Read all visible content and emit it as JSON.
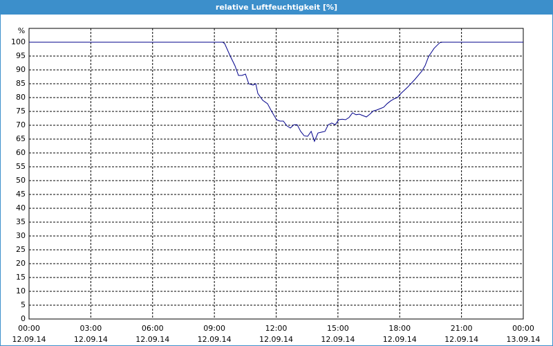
{
  "chart_data": {
    "type": "line",
    "title": "relative Luftfeuchtigkeit [%]",
    "y_label": "%",
    "x": [
      0,
      9.4,
      9.5,
      9.77,
      10.0,
      10.17,
      10.34,
      10.51,
      10.67,
      10.88,
      11.01,
      11.11,
      11.35,
      11.58,
      11.78,
      12.02,
      12.18,
      12.35,
      12.52,
      12.69,
      12.86,
      13.02,
      13.19,
      13.36,
      13.53,
      13.7,
      13.86,
      14.03,
      14.2,
      14.37,
      14.53,
      14.7,
      14.87,
      15.04,
      15.21,
      15.37,
      15.54,
      15.71,
      15.88,
      16.04,
      16.21,
      16.38,
      16.55,
      16.72,
      16.88,
      17.05,
      17.22,
      17.39,
      17.56,
      17.72,
      17.89,
      18.06,
      18.39,
      18.73,
      19.07,
      19.23,
      19.4,
      19.67,
      19.94,
      20.07,
      24
    ],
    "series": [
      {
        "name": "relative Luftfeuchtigkeit",
        "color": "#00008b",
        "values": [
          100,
          100,
          99.5,
          95,
          91.5,
          88,
          88,
          88.5,
          85,
          84.5,
          85,
          81.5,
          79,
          77.8,
          75,
          72,
          71.5,
          71.5,
          69.8,
          69,
          70.2,
          70.2,
          67.8,
          66.2,
          66,
          67.8,
          64.2,
          67.2,
          67.5,
          67.8,
          70.2,
          70.8,
          70.2,
          72,
          72.2,
          72,
          72.8,
          74.5,
          73.8,
          74,
          73.5,
          73,
          74,
          75.2,
          75.5,
          76,
          76.5,
          77.8,
          78.8,
          79.5,
          80,
          81.5,
          83.8,
          86.5,
          89.5,
          91.5,
          94.8,
          97.8,
          99.8,
          100,
          100
        ]
      }
    ],
    "xlim": [
      0,
      24
    ],
    "xticks": [
      {
        "value": 0,
        "label": "00:00",
        "date": "12.09.14"
      },
      {
        "value": 3,
        "label": "03:00",
        "date": "12.09.14"
      },
      {
        "value": 6,
        "label": "06:00",
        "date": "12.09.14"
      },
      {
        "value": 9,
        "label": "09:00",
        "date": "12.09.14"
      },
      {
        "value": 12,
        "label": "12:00",
        "date": "12.09.14"
      },
      {
        "value": 15,
        "label": "15:00",
        "date": "12.09.14"
      },
      {
        "value": 18,
        "label": "18:00",
        "date": "12.09.14"
      },
      {
        "value": 21,
        "label": "21:00",
        "date": "12.09.14"
      },
      {
        "value": 24,
        "label": "00:00",
        "date": "13.09.14"
      }
    ],
    "ylim": [
      0,
      105
    ],
    "yticks": [
      0,
      5,
      10,
      15,
      20,
      25,
      30,
      35,
      40,
      45,
      50,
      55,
      60,
      65,
      70,
      75,
      80,
      85,
      90,
      95,
      100
    ],
    "grid": true
  }
}
